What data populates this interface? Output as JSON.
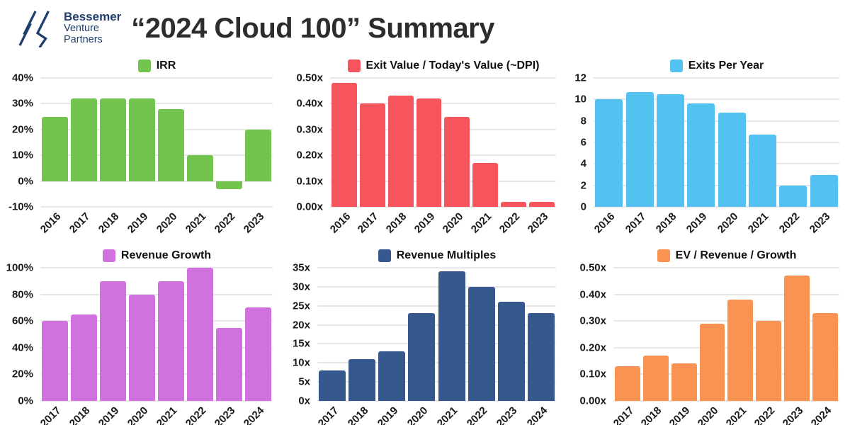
{
  "header": {
    "logo": {
      "line1": "Bessemer",
      "line2": "Venture",
      "line3": "Partners",
      "color": "#1f3e6d"
    },
    "title": "“2024 Cloud 100” Summary"
  },
  "colors": {
    "irr_green": "#72c44e",
    "dpi_red": "#f7555d",
    "exits_blue": "#54c2f0",
    "growth_purple": "#d071de",
    "multiples_navy": "#36588e",
    "ev_orange": "#f99351",
    "gridline": "#e7e7e7",
    "text": "#1b1b1b",
    "title_text": "#2d2d2d"
  },
  "chart_data": [
    {
      "type": "bar",
      "title": "IRR",
      "color": "#72c44e",
      "xlabel": "",
      "ylabel": "",
      "grid": true,
      "legend_position": "top",
      "categories": [
        "2016",
        "2017",
        "2018",
        "2019",
        "2020",
        "2021",
        "2022",
        "2023"
      ],
      "values": [
        25,
        32,
        32,
        32,
        28,
        10,
        -3,
        20
      ],
      "ylim": [
        -10,
        40
      ],
      "yticks": [
        {
          "v": 40,
          "label": "40%"
        },
        {
          "v": 30,
          "label": "30%"
        },
        {
          "v": 20,
          "label": "20%"
        },
        {
          "v": 10,
          "label": "10%"
        },
        {
          "v": 0,
          "label": "0%"
        },
        {
          "v": -10,
          "label": "-10%"
        }
      ]
    },
    {
      "type": "bar",
      "title": "Exit Value / Today's Value (~DPI)",
      "color": "#f7555d",
      "xlabel": "",
      "ylabel": "",
      "grid": true,
      "legend_position": "top",
      "categories": [
        "2016",
        "2017",
        "2018",
        "2019",
        "2020",
        "2021",
        "2022",
        "2023"
      ],
      "values": [
        0.48,
        0.4,
        0.43,
        0.42,
        0.35,
        0.17,
        0.02,
        0.02
      ],
      "ylim": [
        0,
        0.5
      ],
      "yticks": [
        {
          "v": 0.5,
          "label": "0.50x"
        },
        {
          "v": 0.4,
          "label": "0.40x"
        },
        {
          "v": 0.3,
          "label": "0.30x"
        },
        {
          "v": 0.2,
          "label": "0.20x"
        },
        {
          "v": 0.1,
          "label": "0.10x"
        },
        {
          "v": 0,
          "label": "0.00x"
        }
      ]
    },
    {
      "type": "bar",
      "title": "Exits Per Year",
      "color": "#54c2f0",
      "xlabel": "",
      "ylabel": "",
      "grid": true,
      "legend_position": "top",
      "categories": [
        "2016",
        "2017",
        "2018",
        "2019",
        "2020",
        "2021",
        "2022",
        "2023"
      ],
      "values": [
        10,
        10.7,
        10.5,
        9.6,
        8.8,
        6.7,
        2,
        3
      ],
      "ylim": [
        0,
        12
      ],
      "yticks": [
        {
          "v": 12,
          "label": "12"
        },
        {
          "v": 10,
          "label": "10"
        },
        {
          "v": 8,
          "label": "8"
        },
        {
          "v": 6,
          "label": "6"
        },
        {
          "v": 4,
          "label": "4"
        },
        {
          "v": 2,
          "label": "2"
        },
        {
          "v": 0,
          "label": "0"
        }
      ]
    },
    {
      "type": "bar",
      "title": "Revenue Growth",
      "color": "#d071de",
      "xlabel": "",
      "ylabel": "",
      "grid": true,
      "legend_position": "top",
      "categories": [
        "2017",
        "2018",
        "2019",
        "2020",
        "2021",
        "2022",
        "2023",
        "2024"
      ],
      "values": [
        60,
        65,
        90,
        80,
        90,
        100,
        55,
        70
      ],
      "ylim": [
        0,
        100
      ],
      "yticks": [
        {
          "v": 100,
          "label": "100%"
        },
        {
          "v": 80,
          "label": "80%"
        },
        {
          "v": 60,
          "label": "60%"
        },
        {
          "v": 40,
          "label": "40%"
        },
        {
          "v": 20,
          "label": "20%"
        },
        {
          "v": 0,
          "label": "0%"
        }
      ]
    },
    {
      "type": "bar",
      "title": "Revenue Multiples",
      "color": "#36588e",
      "xlabel": "",
      "ylabel": "",
      "grid": true,
      "legend_position": "top",
      "categories": [
        "2017",
        "2018",
        "2019",
        "2020",
        "2021",
        "2022",
        "2023",
        "2024"
      ],
      "values": [
        8,
        11,
        13,
        23,
        34,
        30,
        26,
        23
      ],
      "ylim": [
        0,
        35
      ],
      "yticks": [
        {
          "v": 35,
          "label": "35x"
        },
        {
          "v": 30,
          "label": "30x"
        },
        {
          "v": 25,
          "label": "25x"
        },
        {
          "v": 20,
          "label": "20x"
        },
        {
          "v": 15,
          "label": "15x"
        },
        {
          "v": 10,
          "label": "10x"
        },
        {
          "v": 5,
          "label": "5x"
        },
        {
          "v": 0,
          "label": "0x"
        }
      ]
    },
    {
      "type": "bar",
      "title": "EV / Revenue / Growth",
      "color": "#f99351",
      "xlabel": "",
      "ylabel": "",
      "grid": true,
      "legend_position": "top",
      "categories": [
        "2017",
        "2018",
        "2019",
        "2020",
        "2021",
        "2022",
        "2023",
        "2024"
      ],
      "values": [
        0.13,
        0.17,
        0.14,
        0.29,
        0.38,
        0.3,
        0.47,
        0.33
      ],
      "ylim": [
        0,
        0.5
      ],
      "yticks": [
        {
          "v": 0.5,
          "label": "0.50x"
        },
        {
          "v": 0.4,
          "label": "0.40x"
        },
        {
          "v": 0.3,
          "label": "0.30x"
        },
        {
          "v": 0.2,
          "label": "0.20x"
        },
        {
          "v": 0.1,
          "label": "0.10x"
        },
        {
          "v": 0,
          "label": "0.00x"
        }
      ]
    }
  ]
}
